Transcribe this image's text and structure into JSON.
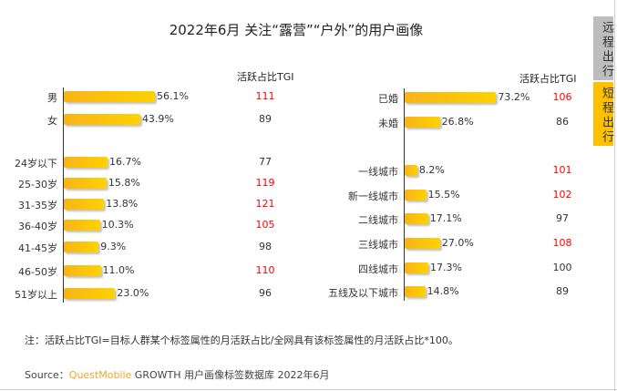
{
  "title": "2022年6月 关注“露营”“户外”的用户画像",
  "tabs": [
    {
      "label": "远程出行",
      "active": false,
      "color": "#bdbdbd"
    },
    {
      "label": "短程出行",
      "active": true,
      "color": "#ffc000"
    }
  ],
  "colors": {
    "bar": "#ffc000",
    "tgi_high": "#ff0000",
    "tgi_normal": "#333333",
    "brand": "#f6a623"
  },
  "chart_data": [
    {
      "type": "bar",
      "orientation": "horizontal",
      "column_header": "活跃占比TGI",
      "categories": [
        "男",
        "女",
        "24岁以下",
        "25-30岁",
        "31-35岁",
        "36-40岁",
        "41-45岁",
        "46-50岁",
        "51岁以上"
      ],
      "values": [
        56.1,
        43.9,
        16.7,
        15.8,
        13.8,
        10.3,
        9.3,
        11.0,
        23.0
      ],
      "value_labels": [
        "56.1%",
        "43.9%",
        "16.7%",
        "15.8%",
        "13.8%",
        "10.3%",
        "9.3%",
        "11.0%",
        "23.0%"
      ],
      "tgi": [
        "111",
        "89",
        "77",
        "119",
        "121",
        "105",
        "98",
        "110",
        "96"
      ],
      "unit": "%"
    },
    {
      "type": "bar",
      "orientation": "horizontal",
      "column_header": "活跃占比TGI",
      "categories": [
        "已婚",
        "未婚",
        "一线城市",
        "新一线城市",
        "二线城市",
        "三线城市",
        "四线城市",
        "五线及以下城市"
      ],
      "values": [
        73.2,
        26.8,
        8.2,
        15.5,
        17.1,
        27.0,
        17.3,
        14.8
      ],
      "value_labels": [
        "73.2%",
        "26.8%",
        "8.2%",
        "15.5%",
        "17.1%",
        "27.0%",
        "17.3%",
        "14.8%"
      ],
      "tgi": [
        "106",
        "86",
        "101",
        "102",
        "97",
        "108",
        "100",
        "89"
      ],
      "unit": "%"
    }
  ],
  "note": "注：活跃占比TGI=目标人群某个标签属性的月活跃占比/全网具有该标签属性的月活跃占比*100。",
  "source": {
    "prefix": "Source：",
    "brand": "QuestMobile",
    "text": " GROWTH 用户画像标签数据库 2022年6月"
  }
}
